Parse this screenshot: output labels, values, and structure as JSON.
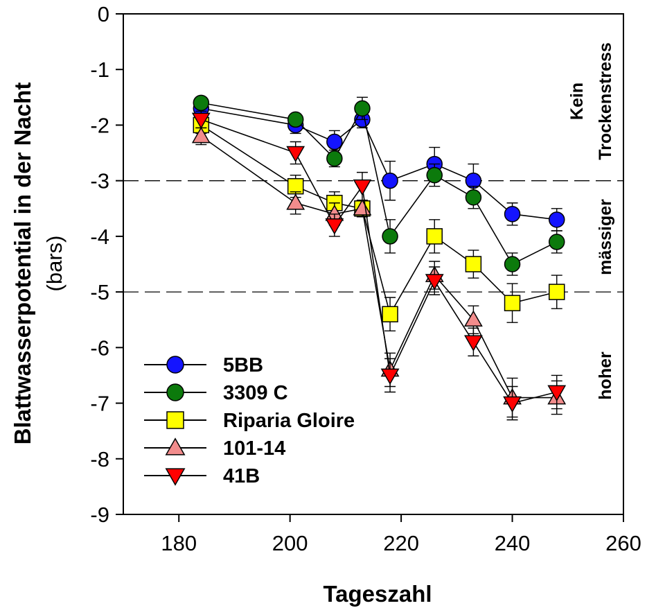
{
  "chart_data": {
    "type": "line",
    "xlabel": "Tageszahl",
    "ylabel_main": "Blattwasserpotential in der Nacht",
    "ylabel_unit": "(bars)",
    "xlim": [
      170,
      260
    ],
    "ylim": [
      -9,
      0
    ],
    "x_ticks": [
      180,
      200,
      220,
      240,
      260
    ],
    "y_ticks": [
      0,
      -1,
      -2,
      -3,
      -4,
      -5,
      -6,
      -7,
      -8,
      -9
    ],
    "grid": false,
    "legend_position": "bottom-left",
    "reference_lines": [
      -3,
      -5
    ],
    "zones": [
      {
        "label_lines": [
          "Kein",
          "Trockenstress"
        ],
        "range": [
          0,
          -3
        ]
      },
      {
        "label_lines": [
          "mässiger"
        ],
        "range": [
          -3,
          -5
        ]
      },
      {
        "label_lines": [
          "hoher"
        ],
        "range": [
          -5,
          -9
        ]
      }
    ],
    "series": [
      {
        "name": "5BB",
        "marker": "circle",
        "color": "#1414ff",
        "x": [
          184,
          201,
          208,
          213,
          218,
          226,
          233,
          240,
          248
        ],
        "y": [
          -1.7,
          -2.0,
          -2.3,
          -1.9,
          -3.0,
          -2.7,
          -3.0,
          -3.6,
          -3.7
        ],
        "err": [
          0.1,
          0.15,
          0.2,
          0.15,
          0.35,
          0.3,
          0.3,
          0.2,
          0.2
        ]
      },
      {
        "name": "3309 C",
        "marker": "circle",
        "color": "#0c7a0c",
        "x": [
          184,
          201,
          208,
          213,
          218,
          226,
          233,
          240,
          248
        ],
        "y": [
          -1.6,
          -1.9,
          -2.6,
          -1.7,
          -4.0,
          -2.9,
          -3.3,
          -4.5,
          -4.1
        ],
        "err": [
          0.1,
          0.1,
          0.15,
          0.2,
          0.3,
          0.2,
          0.2,
          0.2,
          0.2
        ]
      },
      {
        "name": "Riparia Gloire",
        "marker": "square",
        "color": "#ffff00",
        "x": [
          184,
          201,
          208,
          213,
          218,
          226,
          233,
          240,
          248
        ],
        "y": [
          -2.0,
          -3.1,
          -3.4,
          -3.5,
          -5.4,
          -4.0,
          -4.5,
          -5.2,
          -5.0
        ],
        "err": [
          0.15,
          0.2,
          0.2,
          0.15,
          0.3,
          0.3,
          0.25,
          0.35,
          0.3
        ]
      },
      {
        "name": "101-14",
        "marker": "triangle-up",
        "color": "#f28c8c",
        "x": [
          184,
          201,
          208,
          213,
          218,
          226,
          233,
          240,
          248
        ],
        "y": [
          -2.2,
          -3.4,
          -3.6,
          -3.5,
          -6.4,
          -4.7,
          -5.5,
          -6.9,
          -6.9
        ],
        "err": [
          0.15,
          0.2,
          0.2,
          0.15,
          0.3,
          0.25,
          0.25,
          0.35,
          0.3
        ]
      },
      {
        "name": "41B",
        "marker": "triangle-down",
        "color": "#ff0000",
        "x": [
          184,
          201,
          208,
          213,
          218,
          226,
          233,
          240,
          248
        ],
        "y": [
          -1.9,
          -2.5,
          -3.8,
          -3.1,
          -6.5,
          -4.8,
          -5.9,
          -7.0,
          -6.8
        ],
        "err": [
          0.15,
          0.2,
          0.2,
          0.25,
          0.3,
          0.25,
          0.25,
          0.3,
          0.3
        ]
      }
    ]
  }
}
